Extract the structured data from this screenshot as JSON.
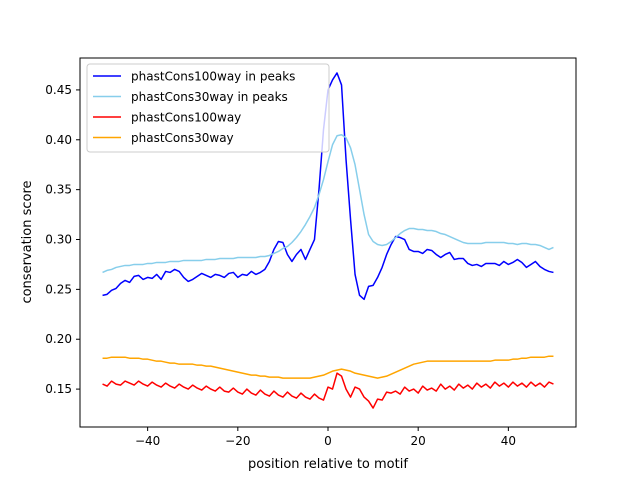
{
  "chart_data": {
    "type": "line",
    "xlabel": "position relative to motif",
    "ylabel": "conservation score",
    "xlim": [
      -55,
      55
    ],
    "ylim": [
      0.112,
      0.482
    ],
    "xticks": [
      -40,
      -20,
      0,
      20,
      40
    ],
    "yticks": [
      0.15,
      0.2,
      0.25,
      0.3,
      0.35,
      0.4,
      0.45
    ],
    "xtick_labels": [
      "−40",
      "−20",
      "0",
      "20",
      "40"
    ],
    "ytick_labels": [
      "0.15",
      "0.20",
      "0.25",
      "0.30",
      "0.35",
      "0.40",
      "0.45"
    ],
    "legend_position": "top-left",
    "grid": false,
    "x": [
      -50,
      -49,
      -48,
      -47,
      -46,
      -45,
      -44,
      -43,
      -42,
      -41,
      -40,
      -39,
      -38,
      -37,
      -36,
      -35,
      -34,
      -33,
      -32,
      -31,
      -30,
      -29,
      -28,
      -27,
      -26,
      -25,
      -24,
      -23,
      -22,
      -21,
      -20,
      -19,
      -18,
      -17,
      -16,
      -15,
      -14,
      -13,
      -12,
      -11,
      -10,
      -9,
      -8,
      -7,
      -6,
      -5,
      -4,
      -3,
      -2,
      -1,
      0,
      1,
      2,
      3,
      4,
      5,
      6,
      7,
      8,
      9,
      10,
      11,
      12,
      13,
      14,
      15,
      16,
      17,
      18,
      19,
      20,
      21,
      22,
      23,
      24,
      25,
      26,
      27,
      28,
      29,
      30,
      31,
      32,
      33,
      34,
      35,
      36,
      37,
      38,
      39,
      40,
      41,
      42,
      43,
      44,
      45,
      46,
      47,
      48,
      49,
      50
    ],
    "series": [
      {
        "name": "phastCons100way in peaks",
        "color": "#0000ff",
        "values": [
          0.244,
          0.245,
          0.249,
          0.251,
          0.256,
          0.259,
          0.257,
          0.263,
          0.264,
          0.26,
          0.262,
          0.261,
          0.265,
          0.26,
          0.268,
          0.267,
          0.27,
          0.268,
          0.262,
          0.258,
          0.26,
          0.263,
          0.266,
          0.264,
          0.262,
          0.265,
          0.264,
          0.262,
          0.266,
          0.267,
          0.262,
          0.265,
          0.264,
          0.268,
          0.265,
          0.267,
          0.27,
          0.278,
          0.29,
          0.298,
          0.297,
          0.285,
          0.278,
          0.285,
          0.29,
          0.28,
          0.29,
          0.3,
          0.35,
          0.41,
          0.45,
          0.46,
          0.467,
          0.455,
          0.38,
          0.32,
          0.265,
          0.244,
          0.24,
          0.253,
          0.254,
          0.262,
          0.272,
          0.285,
          0.295,
          0.303,
          0.302,
          0.3,
          0.29,
          0.288,
          0.288,
          0.286,
          0.29,
          0.289,
          0.285,
          0.282,
          0.285,
          0.287,
          0.28,
          0.281,
          0.281,
          0.276,
          0.274,
          0.275,
          0.273,
          0.276,
          0.276,
          0.276,
          0.274,
          0.278,
          0.275,
          0.277,
          0.28,
          0.277,
          0.272,
          0.275,
          0.278,
          0.273,
          0.27,
          0.268,
          0.267
        ]
      },
      {
        "name": "phastCons30way in peaks",
        "color": "#87ceeb",
        "values": [
          0.267,
          0.269,
          0.27,
          0.272,
          0.273,
          0.274,
          0.274,
          0.275,
          0.275,
          0.275,
          0.276,
          0.276,
          0.277,
          0.277,
          0.277,
          0.278,
          0.278,
          0.278,
          0.279,
          0.279,
          0.279,
          0.279,
          0.279,
          0.28,
          0.28,
          0.28,
          0.281,
          0.281,
          0.281,
          0.281,
          0.282,
          0.282,
          0.282,
          0.282,
          0.282,
          0.283,
          0.283,
          0.284,
          0.286,
          0.288,
          0.291,
          0.293,
          0.297,
          0.302,
          0.308,
          0.315,
          0.323,
          0.332,
          0.345,
          0.36,
          0.378,
          0.395,
          0.404,
          0.405,
          0.402,
          0.392,
          0.375,
          0.35,
          0.325,
          0.305,
          0.298,
          0.295,
          0.294,
          0.295,
          0.298,
          0.302,
          0.306,
          0.309,
          0.311,
          0.311,
          0.31,
          0.31,
          0.309,
          0.309,
          0.308,
          0.306,
          0.305,
          0.303,
          0.301,
          0.299,
          0.297,
          0.296,
          0.296,
          0.296,
          0.296,
          0.297,
          0.297,
          0.297,
          0.297,
          0.297,
          0.296,
          0.296,
          0.295,
          0.296,
          0.296,
          0.295,
          0.295,
          0.294,
          0.292,
          0.29,
          0.292
        ]
      },
      {
        "name": "phastCons100way",
        "color": "#ff0000",
        "values": [
          0.155,
          0.153,
          0.158,
          0.155,
          0.154,
          0.158,
          0.156,
          0.154,
          0.158,
          0.155,
          0.153,
          0.157,
          0.154,
          0.152,
          0.156,
          0.153,
          0.151,
          0.155,
          0.152,
          0.15,
          0.154,
          0.151,
          0.149,
          0.153,
          0.15,
          0.148,
          0.152,
          0.148,
          0.147,
          0.151,
          0.147,
          0.145,
          0.15,
          0.146,
          0.144,
          0.149,
          0.145,
          0.143,
          0.148,
          0.144,
          0.142,
          0.147,
          0.143,
          0.141,
          0.146,
          0.142,
          0.14,
          0.145,
          0.141,
          0.139,
          0.152,
          0.15,
          0.166,
          0.163,
          0.15,
          0.142,
          0.152,
          0.15,
          0.142,
          0.138,
          0.131,
          0.14,
          0.139,
          0.147,
          0.146,
          0.148,
          0.145,
          0.152,
          0.148,
          0.15,
          0.146,
          0.153,
          0.149,
          0.151,
          0.148,
          0.155,
          0.15,
          0.153,
          0.149,
          0.155,
          0.151,
          0.154,
          0.15,
          0.156,
          0.152,
          0.155,
          0.151,
          0.157,
          0.153,
          0.156,
          0.152,
          0.157,
          0.153,
          0.156,
          0.152,
          0.157,
          0.153,
          0.156,
          0.152,
          0.157,
          0.155
        ]
      },
      {
        "name": "phastCons30way",
        "color": "#ffa500",
        "values": [
          0.181,
          0.181,
          0.182,
          0.182,
          0.182,
          0.182,
          0.181,
          0.181,
          0.181,
          0.18,
          0.18,
          0.179,
          0.178,
          0.178,
          0.177,
          0.176,
          0.176,
          0.175,
          0.175,
          0.175,
          0.175,
          0.174,
          0.174,
          0.173,
          0.173,
          0.172,
          0.171,
          0.17,
          0.169,
          0.168,
          0.167,
          0.166,
          0.165,
          0.164,
          0.164,
          0.163,
          0.163,
          0.162,
          0.162,
          0.162,
          0.161,
          0.161,
          0.161,
          0.161,
          0.161,
          0.161,
          0.161,
          0.162,
          0.163,
          0.164,
          0.166,
          0.168,
          0.169,
          0.17,
          0.169,
          0.168,
          0.166,
          0.165,
          0.164,
          0.163,
          0.162,
          0.161,
          0.162,
          0.163,
          0.165,
          0.167,
          0.169,
          0.171,
          0.173,
          0.175,
          0.176,
          0.177,
          0.178,
          0.178,
          0.178,
          0.178,
          0.178,
          0.178,
          0.178,
          0.178,
          0.178,
          0.178,
          0.178,
          0.178,
          0.178,
          0.178,
          0.178,
          0.179,
          0.179,
          0.179,
          0.179,
          0.18,
          0.18,
          0.181,
          0.181,
          0.182,
          0.182,
          0.182,
          0.182,
          0.183,
          0.183
        ]
      }
    ]
  }
}
